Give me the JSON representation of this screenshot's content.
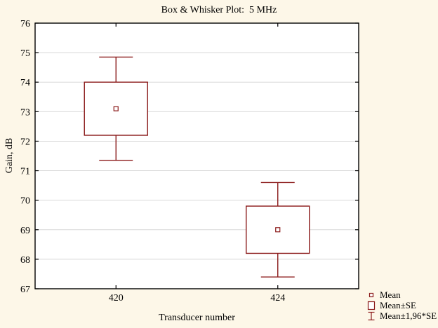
{
  "window": {
    "background": "#FDF7E8"
  },
  "chart_data": {
    "type": "box",
    "title": "Box & Whisker Plot:  5 MHz",
    "xlabel": "Transducer number",
    "ylabel": "Gain, dB",
    "ylim": [
      67,
      76
    ],
    "ytick_step": 1,
    "yticks": [
      67,
      68,
      69,
      70,
      71,
      72,
      73,
      74,
      75,
      76
    ],
    "grid": "horizontal",
    "categories": [
      "420",
      "424"
    ],
    "series": [
      {
        "category": "420",
        "mean": 73.1,
        "box_low": 72.2,
        "box_high": 74.0,
        "whisker_low": 71.35,
        "whisker_high": 74.85
      },
      {
        "category": "424",
        "mean": 69.0,
        "box_low": 68.2,
        "box_high": 69.8,
        "whisker_low": 67.4,
        "whisker_high": 70.6
      }
    ],
    "legend": [
      {
        "symbol": "mean-marker",
        "label": "Mean"
      },
      {
        "symbol": "box",
        "label": "Mean±SE"
      },
      {
        "symbol": "whisker",
        "label": "Mean±1,96*SE"
      }
    ],
    "legend_position": "bottom-right",
    "colors": {
      "box_stroke": "#8B1A1A",
      "grid": "#D8D8D8",
      "axis": "#000000",
      "plot_bg": "#FFFFFF",
      "figure_bg": "#FDF7E8"
    }
  }
}
